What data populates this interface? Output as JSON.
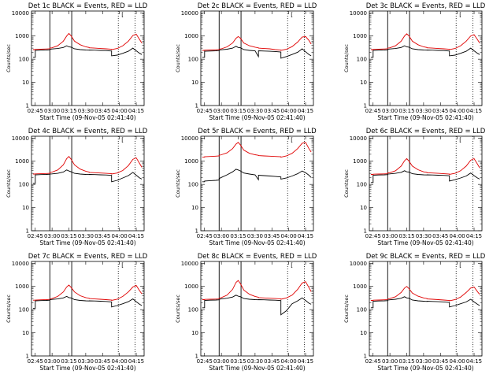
{
  "chart_data": {
    "type": "line",
    "layout": "3x3 grid",
    "x_ticks": [
      "02:45",
      "03:00",
      "03:15",
      "03:30",
      "03:45",
      "04:00",
      "04:15"
    ],
    "xlim": [
      "02:41:40",
      "04:22:00"
    ],
    "y_ticks": [
      "1",
      "10",
      "100",
      "1000",
      "10000"
    ],
    "ylim": [
      1,
      12000
    ],
    "ylog": true,
    "xlabel": "Start Time (09-Nov-05 02:41:40)",
    "ylabel": "Counts/sec",
    "series_colors": {
      "events": "#000000",
      "lld": "#e00000"
    },
    "markers": {
      "solid_lines": [
        "02:58:00",
        "03:17:30"
      ],
      "dotted_lines": [
        "03:59:00",
        "04:14:00"
      ],
      "bracket_text": "["
    },
    "x": [
      "02:43",
      "02:45",
      "02:45",
      "02:50",
      "02:55",
      "02:58",
      "02:58",
      "03:00",
      "03:05",
      "03:10",
      "03:13",
      "03:15",
      "03:17",
      "03:20",
      "03:25",
      "03:30",
      "03:33",
      "03:33",
      "03:38",
      "03:43",
      "03:48",
      "03:53",
      "03:53",
      "03:58",
      "04:03",
      "04:08",
      "04:12",
      "04:15",
      "04:18",
      "04:20"
    ],
    "panels": [
      {
        "title": "Det 1c BLACK = Events, RED = LLD",
        "events": [
          120,
          120,
          240,
          245,
          250,
          255,
          270,
          275,
          290,
          320,
          380,
          340,
          330,
          280,
          260,
          250,
          245,
          250,
          245,
          240,
          235,
          225,
          140,
          150,
          180,
          220,
          300,
          230,
          180,
          160
        ],
        "lld": [
          260,
          260,
          265,
          270,
          275,
          280,
          300,
          310,
          380,
          600,
          1000,
          1300,
          1000,
          600,
          420,
          340,
          320,
          310,
          300,
          290,
          280,
          270,
          260,
          290,
          380,
          600,
          1050,
          1200,
          700,
          500
        ]
      },
      {
        "title": "Det 2c BLACK = Events, RED = LLD",
        "events": [
          120,
          120,
          220,
          225,
          230,
          235,
          250,
          255,
          270,
          300,
          360,
          320,
          310,
          260,
          240,
          230,
          130,
          230,
          225,
          220,
          215,
          205,
          110,
          130,
          160,
          200,
          280,
          210,
          160,
          140
        ],
        "lld": [
          240,
          240,
          245,
          250,
          255,
          260,
          270,
          280,
          340,
          500,
          800,
          950,
          800,
          500,
          380,
          330,
          310,
          300,
          290,
          280,
          260,
          250,
          240,
          270,
          350,
          550,
          900,
          950,
          650,
          450
        ]
      },
      {
        "title": "Det 3c BLACK = Events, RED = LLD",
        "events": [
          120,
          120,
          240,
          245,
          250,
          255,
          270,
          275,
          290,
          320,
          380,
          340,
          330,
          280,
          260,
          250,
          245,
          250,
          245,
          240,
          235,
          225,
          140,
          150,
          180,
          220,
          300,
          230,
          180,
          160
        ],
        "lld": [
          260,
          260,
          265,
          270,
          275,
          280,
          300,
          310,
          380,
          600,
          1000,
          1250,
          1000,
          600,
          420,
          340,
          320,
          310,
          300,
          290,
          280,
          270,
          260,
          290,
          380,
          600,
          1000,
          1150,
          700,
          500
        ]
      },
      {
        "title": "Det 4c BLACK = Events, RED = LLD",
        "events": [
          110,
          110,
          260,
          265,
          270,
          275,
          280,
          285,
          300,
          340,
          420,
          380,
          350,
          300,
          280,
          270,
          265,
          270,
          265,
          260,
          255,
          245,
          130,
          150,
          190,
          240,
          330,
          250,
          190,
          170
        ],
        "lld": [
          280,
          280,
          285,
          290,
          295,
          300,
          320,
          340,
          420,
          700,
          1300,
          1600,
          1200,
          700,
          460,
          370,
          340,
          330,
          320,
          310,
          300,
          290,
          280,
          310,
          400,
          650,
          1200,
          1400,
          800,
          550
        ]
      },
      {
        "title": "Det 5r BLACK = Events, RED = LLD",
        "events": [
          130,
          130,
          140,
          145,
          150,
          155,
          180,
          200,
          260,
          350,
          450,
          420,
          380,
          310,
          280,
          260,
          160,
          250,
          240,
          230,
          220,
          210,
          170,
          190,
          230,
          290,
          380,
          320,
          250,
          200
        ],
        "lld": [
          1500,
          1500,
          1550,
          1600,
          1650,
          1700,
          1800,
          1900,
          2300,
          3500,
          5500,
          6500,
          5000,
          3000,
          2200,
          1900,
          1800,
          1750,
          1700,
          1650,
          1600,
          1550,
          1500,
          1700,
          2200,
          3500,
          6000,
          6500,
          3500,
          2500
        ]
      },
      {
        "title": "Det 6c BLACK = Events, RED = LLD",
        "events": [
          120,
          120,
          250,
          255,
          260,
          265,
          280,
          285,
          300,
          330,
          390,
          350,
          340,
          290,
          270,
          260,
          255,
          260,
          255,
          250,
          245,
          235,
          140,
          160,
          190,
          230,
          310,
          240,
          190,
          170
        ],
        "lld": [
          270,
          270,
          275,
          280,
          285,
          290,
          310,
          320,
          390,
          620,
          1050,
          1300,
          1000,
          620,
          430,
          350,
          330,
          320,
          310,
          300,
          290,
          280,
          270,
          300,
          390,
          620,
          1100,
          1300,
          750,
          520
        ]
      },
      {
        "title": "Det 7c BLACK = Events, RED = LLD",
        "events": [
          115,
          115,
          240,
          245,
          250,
          255,
          270,
          275,
          290,
          320,
          370,
          330,
          320,
          270,
          250,
          240,
          235,
          240,
          235,
          230,
          225,
          215,
          130,
          150,
          180,
          220,
          290,
          220,
          170,
          150
        ],
        "lld": [
          255,
          255,
          260,
          265,
          270,
          275,
          290,
          300,
          370,
          580,
          950,
          1150,
          900,
          580,
          400,
          330,
          310,
          300,
          290,
          280,
          270,
          260,
          250,
          280,
          370,
          580,
          950,
          1100,
          650,
          480
        ]
      },
      {
        "title": "Det 8c BLACK = Events, RED = LLD",
        "events": [
          120,
          120,
          250,
          255,
          260,
          265,
          280,
          290,
          310,
          350,
          420,
          380,
          360,
          300,
          280,
          270,
          265,
          270,
          265,
          260,
          255,
          245,
          60,
          90,
          180,
          240,
          320,
          250,
          190,
          170
        ],
        "lld": [
          270,
          270,
          275,
          280,
          285,
          290,
          310,
          330,
          420,
          750,
          1500,
          1800,
          1300,
          700,
          460,
          370,
          340,
          330,
          320,
          310,
          300,
          290,
          280,
          320,
          420,
          750,
          1400,
          1600,
          900,
          600
        ]
      },
      {
        "title": "Det 9c BLACK = Events, RED = LLD",
        "events": [
          120,
          120,
          230,
          235,
          240,
          245,
          260,
          265,
          280,
          310,
          360,
          320,
          310,
          260,
          240,
          230,
          225,
          230,
          225,
          220,
          215,
          205,
          130,
          150,
          180,
          215,
          280,
          215,
          170,
          150
        ],
        "lld": [
          250,
          250,
          255,
          260,
          265,
          270,
          285,
          300,
          360,
          550,
          850,
          1000,
          800,
          520,
          380,
          320,
          300,
          290,
          280,
          270,
          260,
          250,
          240,
          270,
          350,
          550,
          850,
          950,
          600,
          450
        ]
      }
    ]
  }
}
